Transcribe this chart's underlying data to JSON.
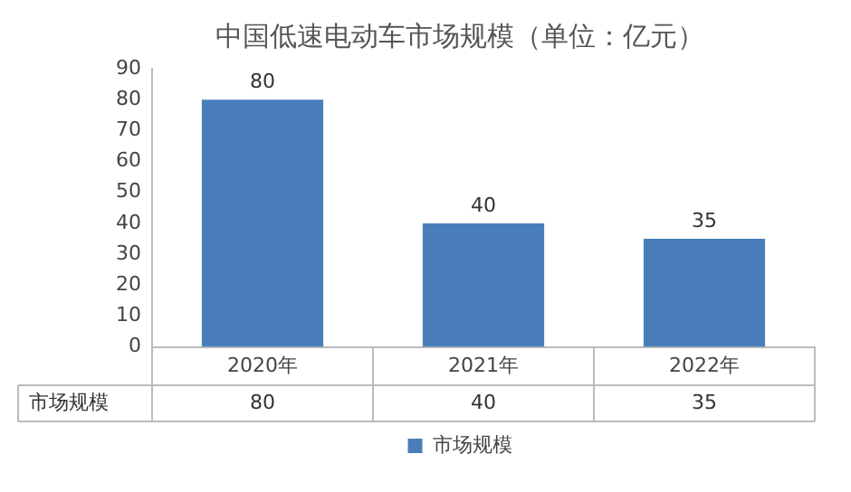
{
  "chart_data": {
    "type": "bar",
    "title": "中国低速电动车市场规模（单位：亿元）",
    "categories": [
      "2020年",
      "2021年",
      "2022年"
    ],
    "series": [
      {
        "name": "市场规模",
        "color": "#4a7ebb",
        "values": [
          80,
          40,
          35
        ]
      }
    ],
    "ylim": [
      0,
      90
    ],
    "yticks": [
      0,
      10,
      20,
      30,
      40,
      50,
      60,
      70,
      80,
      90
    ],
    "annotations": [
      "80",
      "40",
      "35"
    ],
    "grid": false,
    "legend": "bottom",
    "data_labels": true
  }
}
